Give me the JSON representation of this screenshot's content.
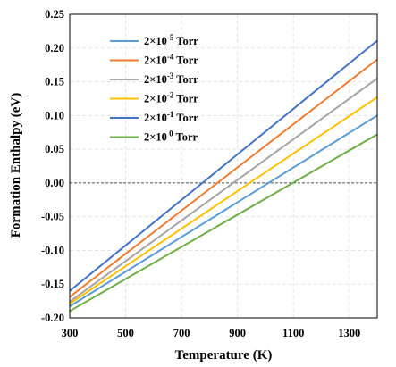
{
  "chart_data": {
    "type": "line",
    "xlabel": "Temperature (K)",
    "ylabel": "Formation Enthalpy (eV)",
    "xlim": [
      300,
      1400
    ],
    "ylim": [
      -0.2,
      0.25
    ],
    "xticks": [
      "300",
      "500",
      "700",
      "900",
      "1100",
      "1300"
    ],
    "yticks": [
      "-0.20",
      "-0.15",
      "-0.10",
      "-0.05",
      "0.00",
      "0.05",
      "0.10",
      "0.15",
      "0.20",
      "0.25"
    ],
    "grid": true,
    "legend_position": "top-left",
    "reference_line": {
      "y": 0,
      "style": "dashed",
      "color": "#555555"
    },
    "series": [
      {
        "base": "2×10",
        "exp": "-5",
        "unit": " Torr",
        "color": "#5b9bd5",
        "points": [
          [
            300,
            -0.183
          ],
          [
            1400,
            0.1
          ]
        ]
      },
      {
        "base": "2×10",
        "exp": "-4",
        "unit": " Torr",
        "color": "#ed7d31",
        "points": [
          [
            300,
            -0.169
          ],
          [
            1400,
            0.183
          ]
        ]
      },
      {
        "base": "2×10",
        "exp": "-3",
        "unit": " Torr",
        "color": "#a5a5a5",
        "points": [
          [
            300,
            -0.176
          ],
          [
            1400,
            0.155
          ]
        ]
      },
      {
        "base": "2×10",
        "exp": "-2",
        "unit": " Torr",
        "color": "#ffc000",
        "points": [
          [
            300,
            -0.179
          ],
          [
            1400,
            0.127
          ]
        ]
      },
      {
        "base": "2×10",
        "exp": "-1",
        "unit": " Torr",
        "color": "#4472c4",
        "points": [
          [
            300,
            -0.16
          ],
          [
            1400,
            0.211
          ]
        ]
      },
      {
        "base": "2×10",
        "exp": " 0",
        "unit": " Torr",
        "color": "#70ad47",
        "points": [
          [
            300,
            -0.19
          ],
          [
            1400,
            0.072
          ]
        ]
      }
    ]
  }
}
